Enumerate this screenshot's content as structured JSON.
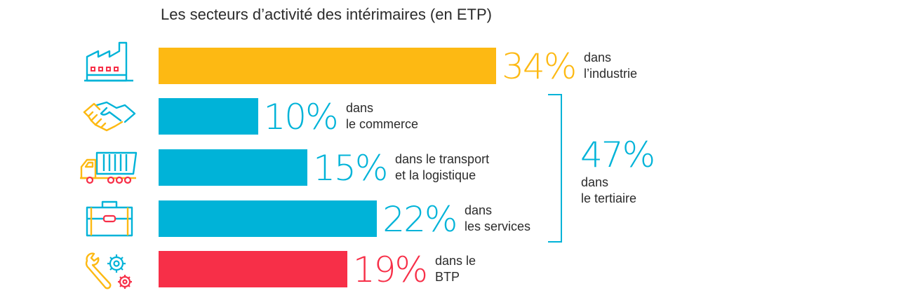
{
  "chart_data": {
    "type": "bar",
    "orientation": "horizontal",
    "title": "Les secteurs d’activité des intérimaires (en ETP)",
    "unit": "%",
    "xlim": [
      0,
      100
    ],
    "categories": [
      {
        "key": "industrie",
        "value": 34,
        "label": "34%",
        "description": "dans\nl’industrie",
        "color": "#fdb913",
        "icon": "factory-icon"
      },
      {
        "key": "commerce",
        "value": 10,
        "label": "10%",
        "description": "dans\nle commerce",
        "color": "#00b3d8",
        "icon": "handshake-icon"
      },
      {
        "key": "transport",
        "value": 15,
        "label": "15%",
        "description": "dans le transport\net la logistique",
        "color": "#00b3d8",
        "icon": "truck-icon"
      },
      {
        "key": "services",
        "value": 22,
        "label": "22%",
        "description": "dans\nles services",
        "color": "#00b3d8",
        "icon": "toolbox-icon"
      },
      {
        "key": "btp",
        "value": 19,
        "label": "19%",
        "description": "dans le\nBTP",
        "color": "#f72f48",
        "icon": "wrench-gears-icon"
      }
    ],
    "group": {
      "label": "47%",
      "value": 47,
      "description": "dans\nle tertiaire",
      "members": [
        "commerce",
        "transport",
        "services"
      ],
      "color": "#00b3d8"
    }
  }
}
